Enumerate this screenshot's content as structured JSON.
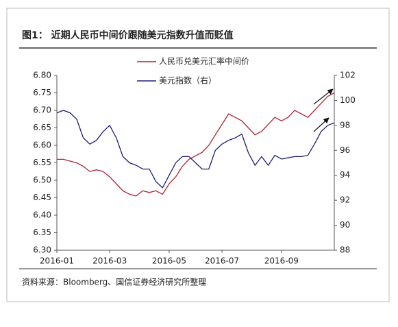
{
  "chart_data": {
    "type": "line",
    "title": "图1： 近期人民币中间价跟随美元指数升值而贬值",
    "source": "资料来源：Bloomberg、国信证券经济研究所整理",
    "categories": [
      "2016-01",
      null,
      null,
      null,
      null,
      null,
      null,
      null,
      "2016-03",
      null,
      null,
      null,
      null,
      null,
      null,
      null,
      null,
      "2016-05",
      null,
      null,
      null,
      null,
      null,
      null,
      null,
      "2016-07",
      null,
      null,
      null,
      null,
      null,
      null,
      null,
      null,
      "2016-09",
      null,
      null,
      null,
      null,
      null,
      null,
      null,
      null
    ],
    "series": [
      {
        "name": "人民币兑美元汇率中间价",
        "color": "#b0202e",
        "values": [
          6.56,
          6.56,
          6.555,
          6.55,
          6.54,
          6.525,
          6.53,
          6.525,
          6.51,
          6.49,
          6.47,
          6.46,
          6.455,
          6.47,
          6.465,
          6.47,
          6.46,
          6.49,
          6.51,
          6.54,
          6.56,
          6.57,
          6.58,
          6.6,
          6.63,
          6.66,
          6.69,
          6.68,
          6.67,
          6.65,
          6.63,
          6.64,
          6.66,
          6.68,
          6.67,
          6.68,
          6.7,
          6.69,
          6.68,
          6.7,
          6.72,
          6.74,
          6.75
        ]
      },
      {
        "name": "美元指数（右）",
        "color": "#1c1c78",
        "axis": "y2",
        "values": [
          99,
          99.2,
          99,
          98.5,
          97,
          96.5,
          96.8,
          97.5,
          98,
          97,
          95.5,
          95,
          94.8,
          94.5,
          94.5,
          93.5,
          93,
          94,
          95,
          95.5,
          95.5,
          95,
          94.5,
          94.5,
          96,
          96.5,
          96.8,
          97,
          97.3,
          95.8,
          94.8,
          95.5,
          94.8,
          95.6,
          95.3,
          95.4,
          95.5,
          95.5,
          95.6,
          96.5,
          97.5,
          98,
          98.2
        ]
      }
    ],
    "ylim": [
      6.3,
      6.8
    ],
    "yticks": [
      {
        "value": 6.3,
        "label": "6.30"
      },
      {
        "value": 6.35,
        "label": "6.35"
      },
      {
        "value": 6.4,
        "label": "6.40"
      },
      {
        "value": 6.45,
        "label": "6.45"
      },
      {
        "value": 6.5,
        "label": "6.50"
      },
      {
        "value": 6.55,
        "label": "6.55"
      },
      {
        "value": 6.6,
        "label": "6.60"
      },
      {
        "value": 6.65,
        "label": "6.65"
      },
      {
        "value": 6.7,
        "label": "6.70"
      },
      {
        "value": 6.75,
        "label": "6.75"
      },
      {
        "value": 6.8,
        "label": "6.80"
      }
    ],
    "y2lim": [
      88,
      102
    ],
    "y2ticks": [
      88,
      90,
      92,
      94,
      96,
      98,
      100,
      102
    ],
    "grid": false
  }
}
